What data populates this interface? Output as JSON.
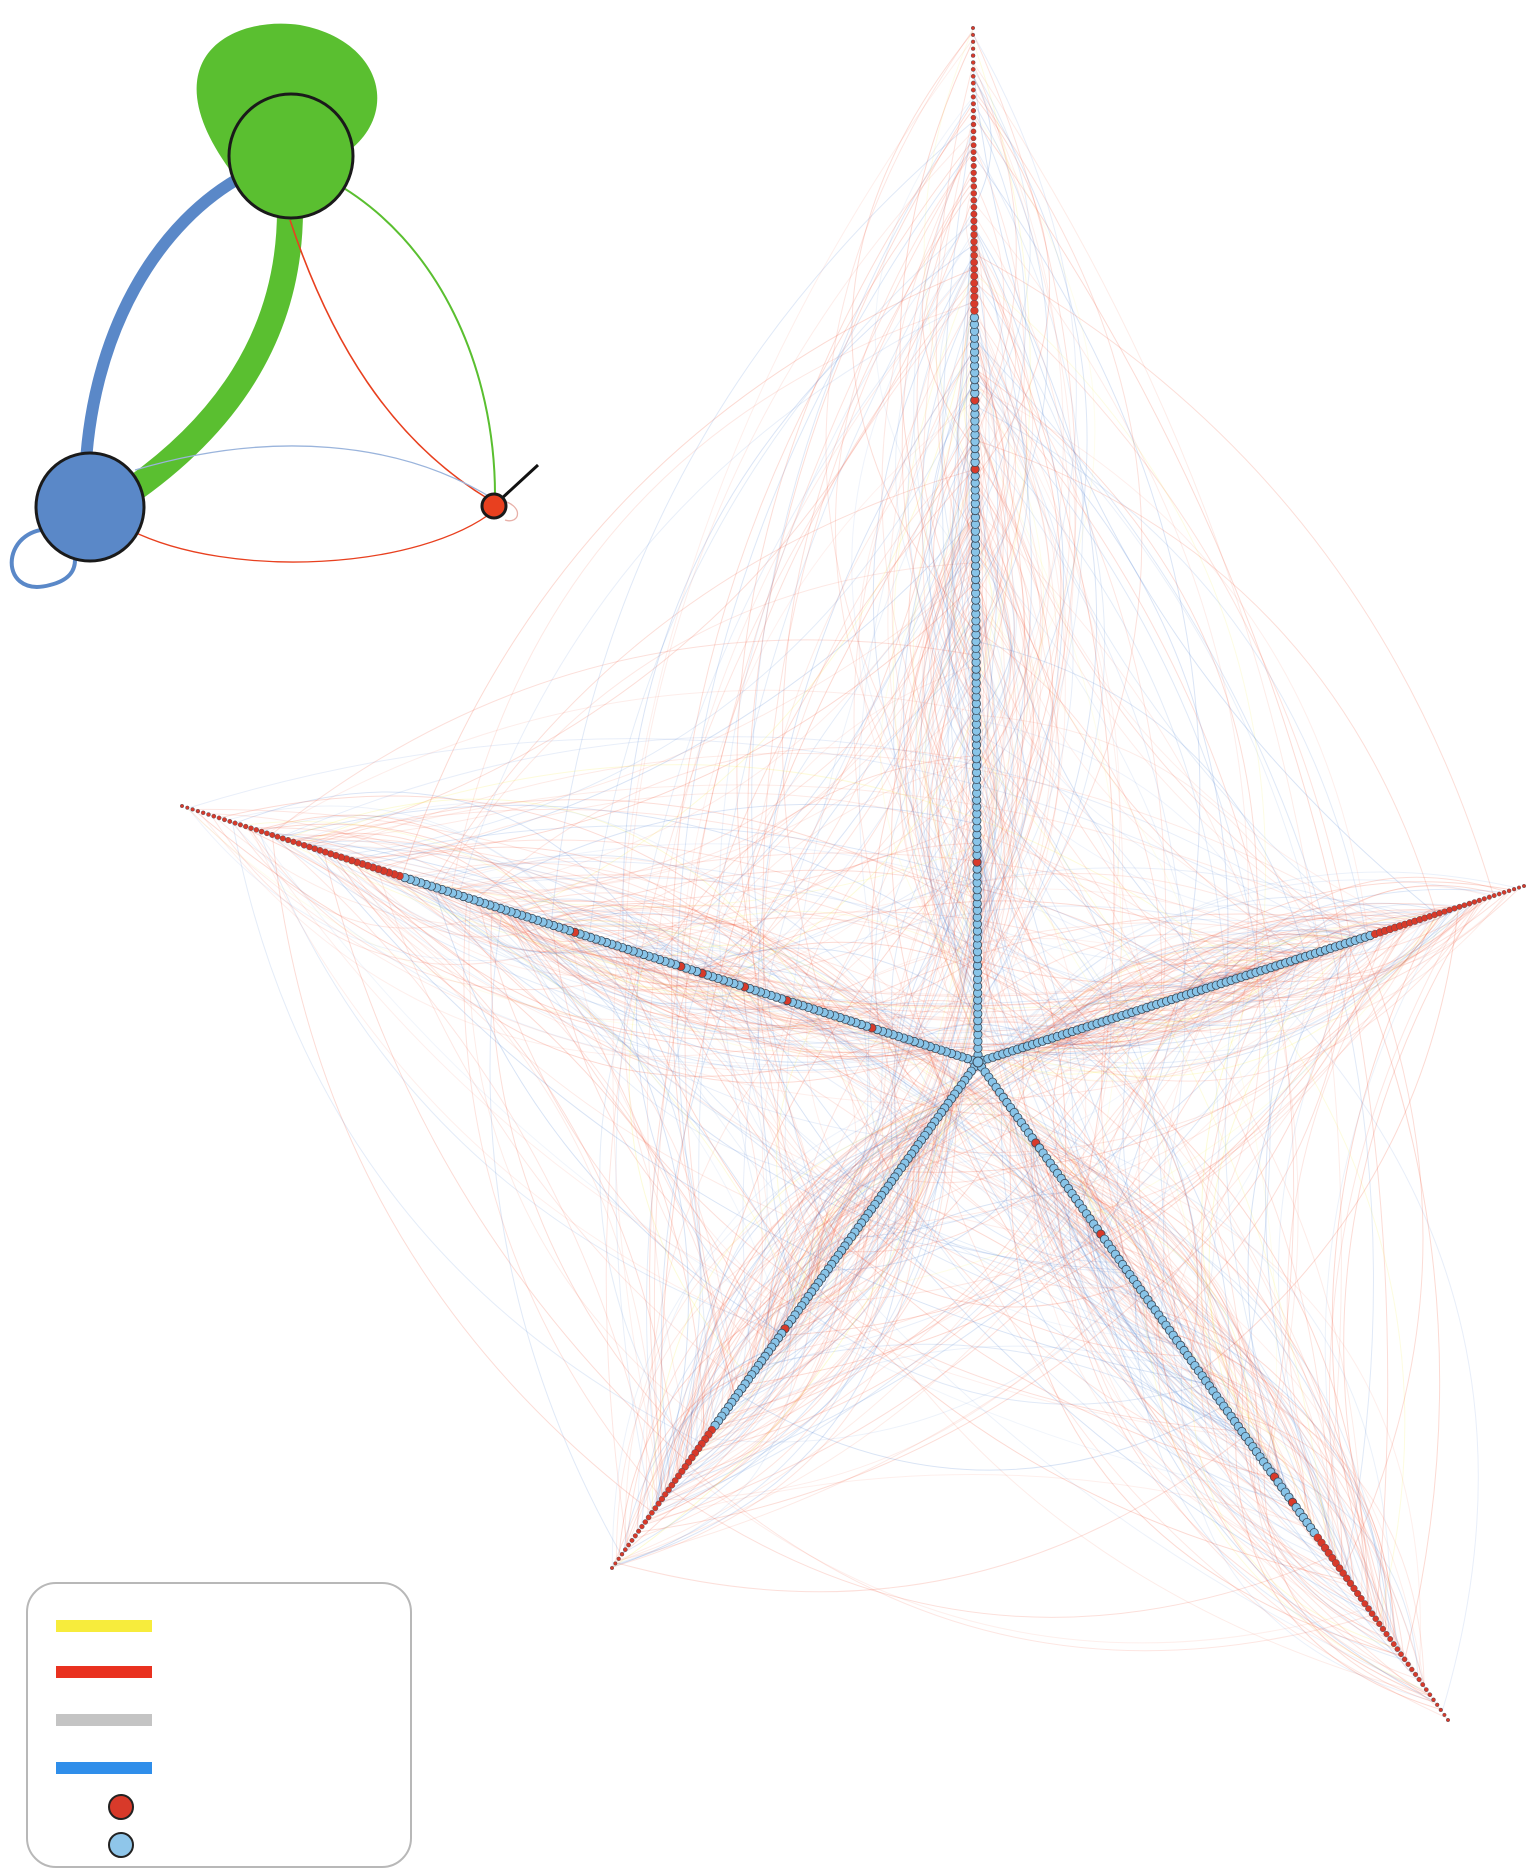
{
  "figure": {
    "main_network": {
      "arms": 5,
      "edge_colors": [
        "#f05030",
        "#4a7fd0",
        "#f2ec40"
      ],
      "core_node_color": "#88c4e8",
      "peripheral_node_color": "#d83a2a"
    },
    "motif_graph": {
      "nodes": [
        {
          "name": "green-node",
          "color": "#5abf30"
        },
        {
          "name": "blue-node",
          "color": "#5a88c8"
        },
        {
          "name": "red-node",
          "color": "#e8401f"
        }
      ]
    }
  },
  "legend": {
    "items": [
      {
        "type": "line",
        "color": "#f7ec3c",
        "label": ""
      },
      {
        "type": "line",
        "color": "#e9311f",
        "label": ""
      },
      {
        "type": "line",
        "color": "#c4c4c4",
        "label": ""
      },
      {
        "type": "line",
        "color": "#2f8eea",
        "label": ""
      },
      {
        "type": "dot",
        "color": "#d83a2a",
        "label": ""
      },
      {
        "type": "dot",
        "color": "#8fc6ea",
        "label": ""
      }
    ]
  }
}
